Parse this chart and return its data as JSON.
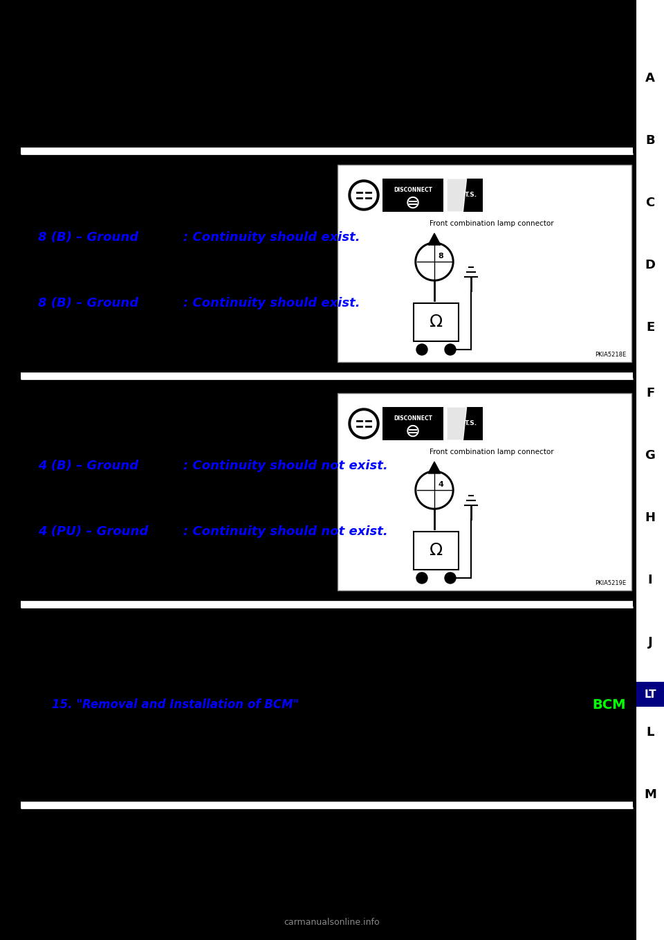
{
  "bg_color": "#000000",
  "right_sidebar_letters": [
    "A",
    "B",
    "C",
    "D",
    "E",
    "F",
    "G",
    "H",
    "I",
    "J",
    "L",
    "M"
  ],
  "section1": {
    "check_lines": [
      {
        "wire": "8 (B) – Ground",
        "result": ": Continuity should exist."
      },
      {
        "wire": "8 (B) – Ground",
        "result": ": Continuity should exist."
      }
    ],
    "diagram_label": "Front combination lamp connector",
    "diagram_code": "PKIA5218E",
    "pin_number": "8"
  },
  "section2": {
    "check_lines": [
      {
        "wire": "4 (B) – Ground",
        "result": ": Continuity should not exist."
      },
      {
        "wire": "4 (PU) – Ground",
        "result": ": Continuity should not exist."
      }
    ],
    "diagram_label": "Front combination lamp connector",
    "diagram_code": "PKIA5219E",
    "pin_number": "4"
  },
  "section3": {
    "link_text": "15. \"Removal and Installation of BCM\"",
    "bcm_label": "BCM",
    "bcm_color": "#00ff00"
  },
  "blue_text_color": "#0000ff",
  "white_text_color": "#ffffff",
  "bottom_watermark": "carmanualsonline.info"
}
